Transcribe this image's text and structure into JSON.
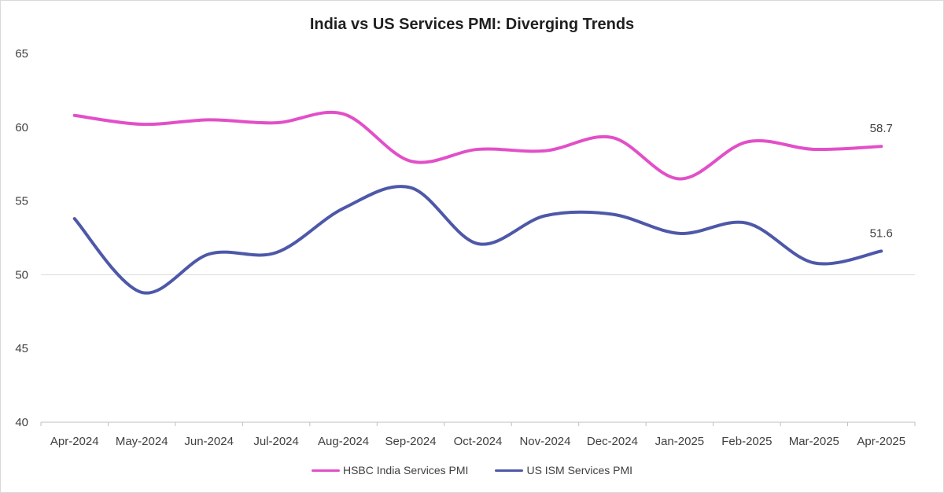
{
  "chart_data": {
    "type": "line",
    "title": "India vs US Services PMI: Diverging Trends",
    "xlabel": "",
    "ylabel": "",
    "categories": [
      "Apr-2024",
      "May-2024",
      "Jun-2024",
      "Jul-2024",
      "Aug-2024",
      "Sep-2024",
      "Oct-2024",
      "Nov-2024",
      "Dec-2024",
      "Jan-2025",
      "Feb-2025",
      "Mar-2025",
      "Apr-2025"
    ],
    "ylim": [
      40,
      65
    ],
    "yticks": [
      "40",
      "45",
      "50",
      "55",
      "60",
      "65"
    ],
    "gridlines": [
      50
    ],
    "legend_position": "bottom",
    "series": [
      {
        "name": "HSBC India Services PMI",
        "color": "#e24fc8",
        "values": [
          60.8,
          60.2,
          60.5,
          60.3,
          60.9,
          57.7,
          58.5,
          58.4,
          59.3,
          56.5,
          59.0,
          58.5,
          58.7
        ],
        "end_label": "58.7"
      },
      {
        "name": "US ISM Services PMI",
        "color": "#4e58a8",
        "values": [
          53.8,
          48.8,
          51.4,
          51.5,
          54.5,
          55.9,
          52.1,
          54.0,
          54.1,
          52.8,
          53.5,
          50.8,
          51.6
        ],
        "end_label": "51.6"
      }
    ]
  }
}
